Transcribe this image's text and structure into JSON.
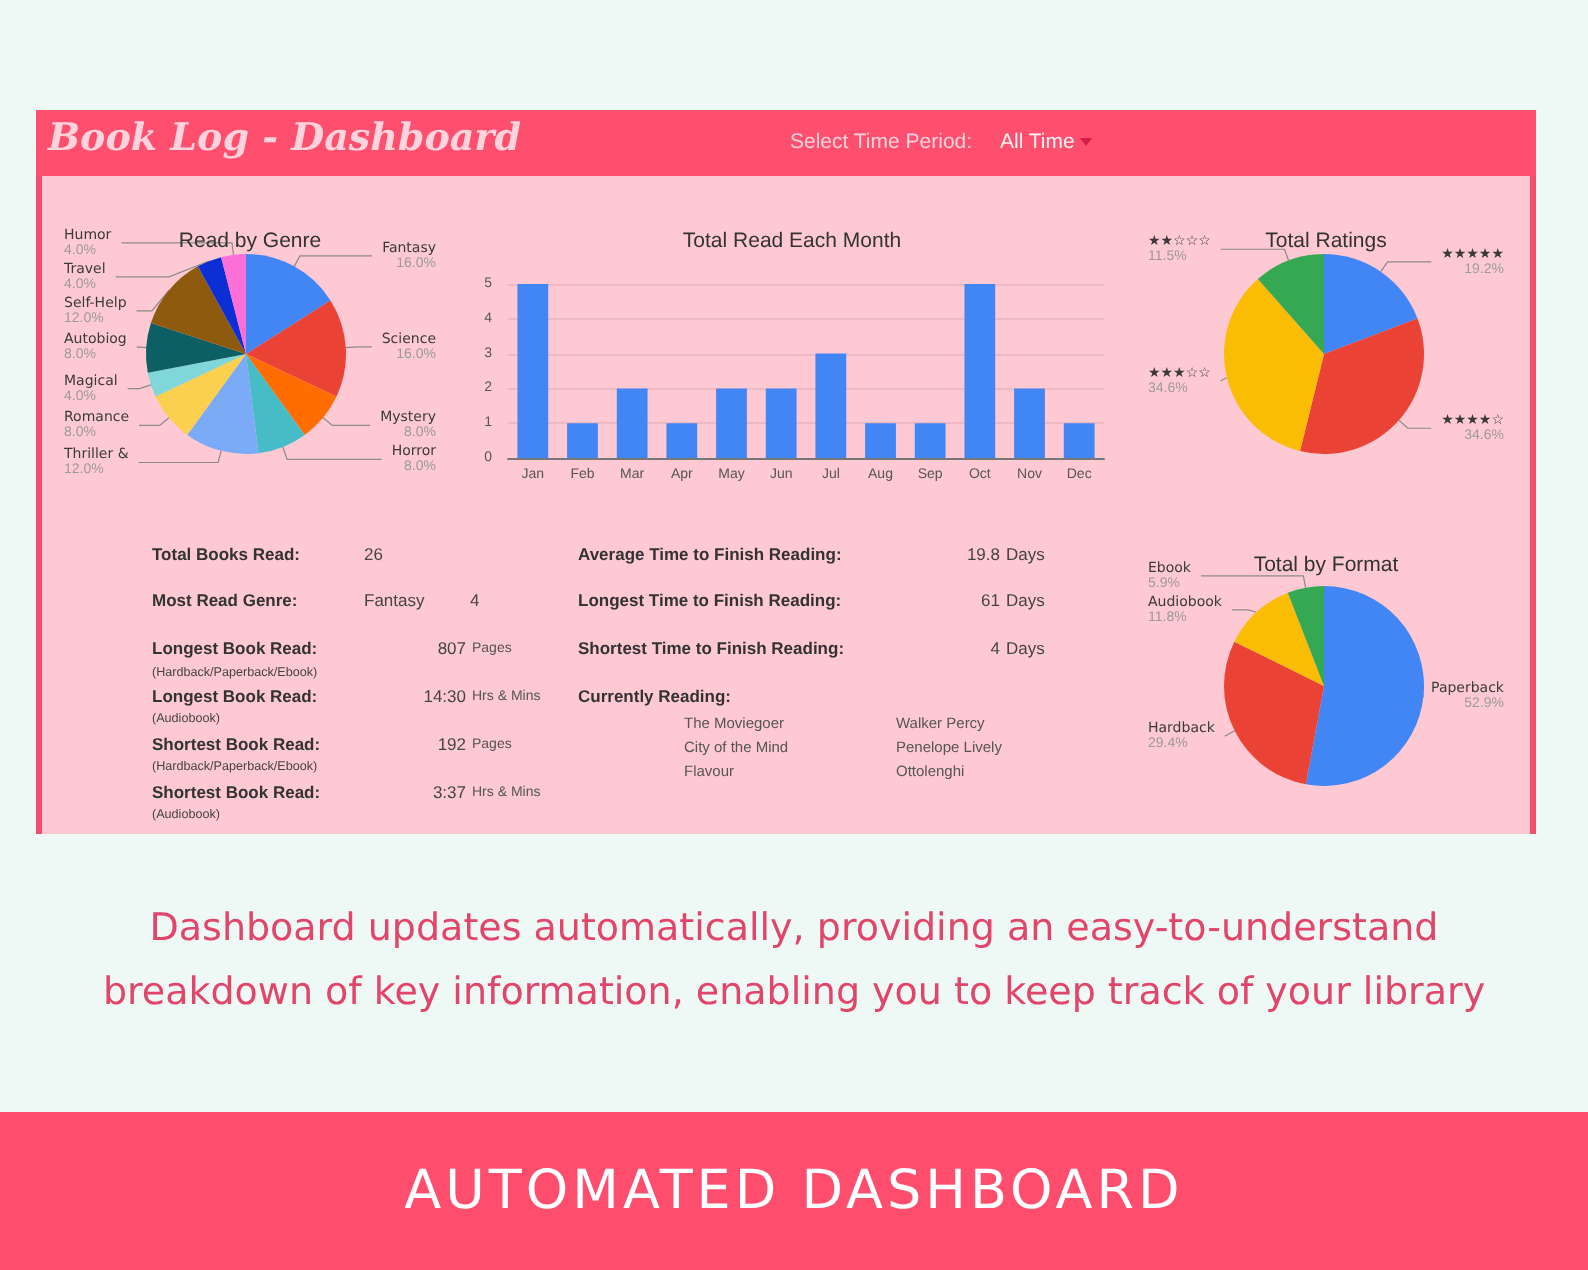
{
  "chart_data": [
    {
      "type": "other",
      "title": "Book Log - Dashboard",
      "annotations": [
        "Select Time Period:",
        "All Time"
      ]
    },
    {
      "type": "pie",
      "title": "Read by Genre",
      "categories": [
        "Fantasy",
        "Science",
        "Mystery",
        "Horror",
        "Thriller &",
        "Romance",
        "Magical",
        "Autobiog",
        "Self-Help",
        "Travel",
        "Humor"
      ],
      "values": [
        16,
        16,
        8,
        8,
        12,
        8,
        4,
        8,
        12,
        4,
        4
      ],
      "colors": [
        "#4285f4",
        "#ea4335",
        "#ff6d01",
        "#46bdc6",
        "#7baaf7",
        "#fcd04f",
        "#7fd7d9",
        "#0c5f62",
        "#8e5a0e",
        "#0b2fd4",
        "#fb6fd6"
      ],
      "value_labels": [
        "16.0%",
        "16.0%",
        "8.0%",
        "8.0%",
        "12.0%",
        "8.0%",
        "4.0%",
        "8.0%",
        "12.0%",
        "4.0%",
        "4.0%"
      ]
    },
    {
      "type": "bar",
      "title": "Total Read Each Month",
      "categories": [
        "Jan",
        "Feb",
        "Mar",
        "Apr",
        "May",
        "Jun",
        "Jul",
        "Aug",
        "Sep",
        "Oct",
        "Nov",
        "Dec"
      ],
      "values": [
        5,
        1,
        2,
        1,
        2,
        2,
        3,
        1,
        1,
        5,
        2,
        1
      ],
      "color": "#4285f4",
      "ylim": [
        0,
        5
      ],
      "yticks": [
        0,
        1,
        2,
        3,
        4,
        5
      ],
      "grid": "y"
    },
    {
      "type": "pie",
      "title": "Total Ratings",
      "categories": [
        "★★★★★",
        "★★★★☆",
        "★★★☆☆",
        "★★☆☆☆"
      ],
      "values": [
        19.2,
        34.6,
        34.6,
        11.5
      ],
      "colors": [
        "#4285f4",
        "#ea4335",
        "#fbbc04",
        "#34a853"
      ],
      "value_labels": [
        "19.2%",
        "34.6%",
        "34.6%",
        "11.5%"
      ]
    },
    {
      "type": "other",
      "annotations": [
        "Total Books Read:",
        "26",
        "Most Read Genre:",
        "Fantasy",
        "4",
        "Longest Book Read:",
        "807",
        "Pages",
        "(Hardback/Paperback/Ebook)",
        "Longest Book Read:",
        "14:30",
        "Hrs & Mins",
        "(Audiobook)",
        "Shortest Book Read:",
        "192",
        "Pages",
        "(Hardback/Paperback/Ebook)",
        "Shortest Book Read:",
        "3:37",
        "Hrs & Mins",
        "(Audiobook)",
        "Average Time to Finish Reading:",
        "19.8",
        "Days",
        "Longest Time to Finish Reading:",
        "61",
        "Days",
        "Shortest Time to Finish Reading:",
        "4",
        "Days",
        "Currently Reading:",
        "The Moviegoer",
        "Walker Percy",
        "City of the Mind",
        "Penelope Lively",
        "Flavour",
        "Ottolenghi"
      ]
    },
    {
      "type": "pie",
      "title": "Total by Format",
      "categories": [
        "Paperback",
        "Hardback",
        "Audiobook",
        "Ebook"
      ],
      "values": [
        52.9,
        29.4,
        11.8,
        5.9
      ],
      "colors": [
        "#4285f4",
        "#ea4335",
        "#fbbc04",
        "#34a853"
      ],
      "value_labels": [
        "52.9%",
        "29.4%",
        "11.8%",
        "5.9%"
      ]
    },
    {
      "type": "other",
      "title": "AUTOMATED DASHBOARD",
      "annotations": [
        "Dashboard updates automatically, providing an easy-to-understand breakdown of key information, enabling you to keep track of your library"
      ]
    }
  ]
}
